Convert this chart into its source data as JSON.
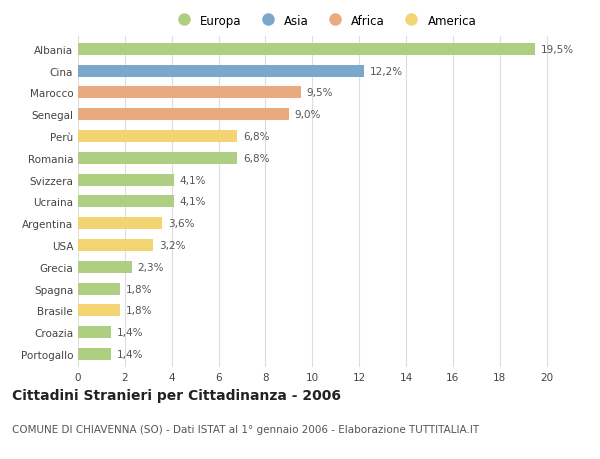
{
  "countries": [
    "Albania",
    "Cina",
    "Marocco",
    "Senegal",
    "Perù",
    "Romania",
    "Svizzera",
    "Ucraina",
    "Argentina",
    "USA",
    "Grecia",
    "Spagna",
    "Brasile",
    "Croazia",
    "Portogallo"
  ],
  "values": [
    19.5,
    12.2,
    9.5,
    9.0,
    6.8,
    6.8,
    4.1,
    4.1,
    3.6,
    3.2,
    2.3,
    1.8,
    1.8,
    1.4,
    1.4
  ],
  "continents": [
    "Europa",
    "Asia",
    "Africa",
    "Africa",
    "America",
    "Europa",
    "Europa",
    "Europa",
    "America",
    "America",
    "Europa",
    "Europa",
    "America",
    "Europa",
    "Europa"
  ],
  "labels": [
    "19,5%",
    "12,2%",
    "9,5%",
    "9,0%",
    "6,8%",
    "6,8%",
    "4,1%",
    "4,1%",
    "3,6%",
    "3,2%",
    "2,3%",
    "1,8%",
    "1,8%",
    "1,4%",
    "1,4%"
  ],
  "continent_colors": {
    "Europa": "#aecf82",
    "Asia": "#7ba7cb",
    "Africa": "#e8aa7e",
    "America": "#f2d472"
  },
  "legend_order": [
    "Europa",
    "Asia",
    "Africa",
    "America"
  ],
  "title": "Cittadini Stranieri per Cittadinanza - 2006",
  "subtitle": "COMUNE DI CHIAVENNA (SO) - Dati ISTAT al 1° gennaio 2006 - Elaborazione TUTTITALIA.IT",
  "xlim": [
    0,
    21
  ],
  "xticks": [
    0,
    2,
    4,
    6,
    8,
    10,
    12,
    14,
    16,
    18,
    20
  ],
  "background_color": "#ffffff",
  "grid_color": "#dddddd",
  "bar_height": 0.55,
  "label_fontsize": 7.5,
  "tick_fontsize": 7.5,
  "title_fontsize": 10,
  "subtitle_fontsize": 7.5,
  "legend_fontsize": 8.5
}
